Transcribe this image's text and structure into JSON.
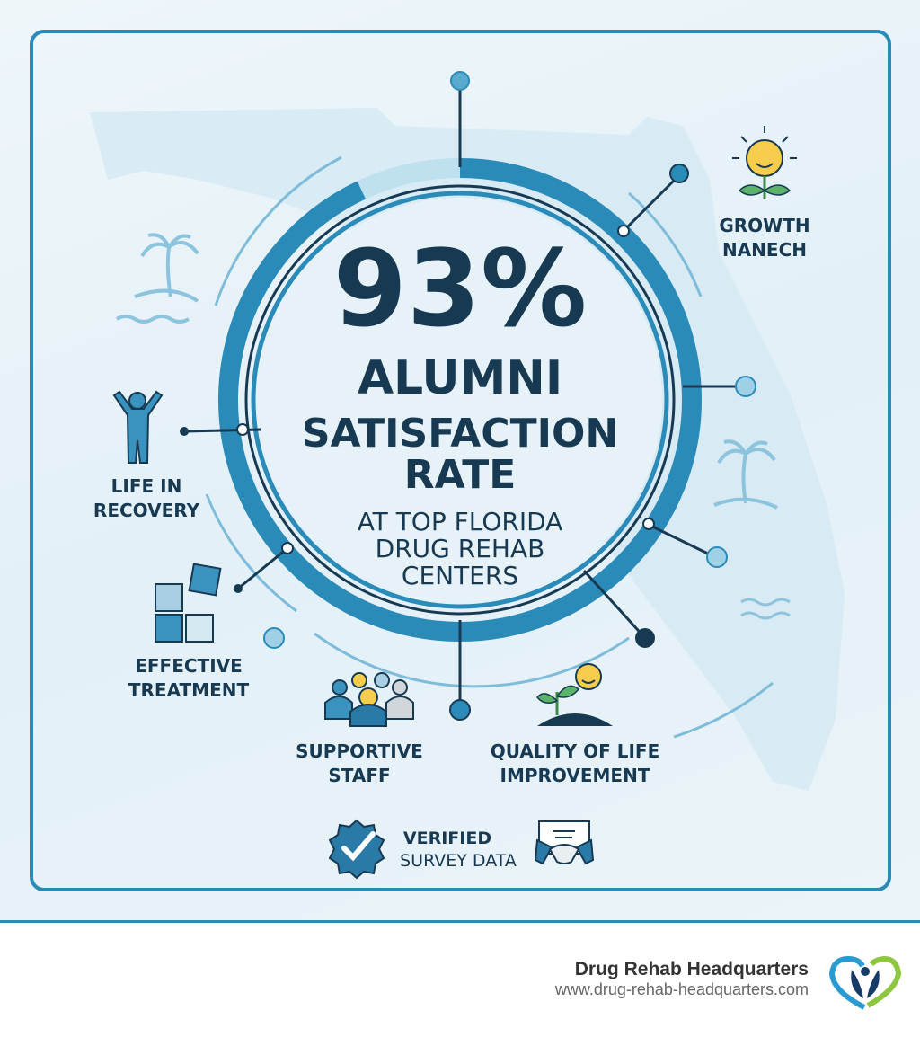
{
  "headline": {
    "percent": "93%",
    "line1": "ALUMNI",
    "line2": "SATISFACTION",
    "line3": "RATE",
    "sub1": "AT TOP FLORIDA",
    "sub2": "DRUG REHAB",
    "sub3": "CENTERS"
  },
  "satisfaction_fraction": 0.93,
  "features": {
    "growth": {
      "line1": "GROWTH",
      "line2": "NANECH",
      "icon": "smiling-sun-flower-icon"
    },
    "recovery": {
      "line1": "LIFE IN",
      "line2": "RECOVERY",
      "icon": "person-arms-raised-icon"
    },
    "treatment": {
      "line1": "EFFECTIVE",
      "line2": "TREATMENT",
      "icon": "puzzle-icon"
    },
    "staff": {
      "line1": "SUPPORTIVE",
      "line2": "STAFF",
      "icon": "group-people-icon"
    },
    "quality": {
      "line1": "QUALITY OF LIFE",
      "line2": "IMPROVEMENT",
      "icon": "sprout-sun-icon"
    }
  },
  "verified": {
    "line1": "VERIFIED",
    "line2": "SURVEY DATA",
    "icons": [
      "verified-badge-icon",
      "handshake-certificate-icon"
    ]
  },
  "footer": {
    "brand": "Drug Rehab Headquarters",
    "url": "www.drug-rehab-headquarters.com",
    "logo": "heart-person-leaves-logo"
  },
  "colors": {
    "accent": "#2a8ab8",
    "dark": "#173a52",
    "light": "#bfe0ee",
    "logo_green": "#8dc63f"
  }
}
